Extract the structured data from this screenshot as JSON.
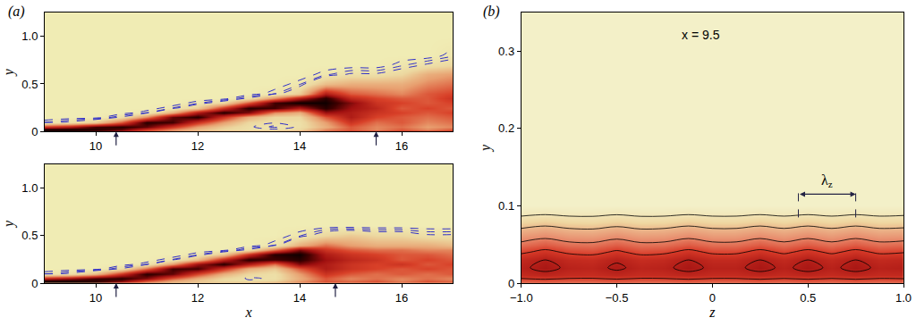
{
  "chart_data": [
    {
      "type": "heatmap",
      "panel_label": "(a)",
      "ylabel": "y",
      "x": [
        9,
        9.5,
        10,
        10.5,
        11,
        11.5,
        12,
        12.5,
        13,
        13.5,
        14,
        14.5,
        15,
        15.5,
        16,
        16.5,
        17
      ],
      "y": [
        0,
        0.02,
        0.05,
        0.1,
        0.15,
        0.2,
        0.25,
        0.3,
        0.35,
        0.4,
        0.5,
        0.6,
        0.7,
        0.8,
        1.0,
        1.25
      ],
      "z": [
        [
          0.9,
          0.9,
          0.85,
          0.7,
          0.5,
          0.4,
          0.35,
          0.35,
          0.35,
          0.35,
          0.4,
          0.5,
          0.6,
          0.6,
          0.6,
          0.6,
          0.6
        ],
        [
          1,
          1,
          0.95,
          0.85,
          0.6,
          0.4,
          0.25,
          0.15,
          0.1,
          0.1,
          0.15,
          0.4,
          0.5,
          0.4,
          0.5,
          0.4,
          0.5
        ],
        [
          0.6,
          0.7,
          0.9,
          0.95,
          0.85,
          0.6,
          0.35,
          0.2,
          0.1,
          0.05,
          0.1,
          0.3,
          0.5,
          0.4,
          0.45,
          0.35,
          0.4
        ],
        [
          0.05,
          0.1,
          0.2,
          0.5,
          0.95,
          0.9,
          0.6,
          0.35,
          0.15,
          0.1,
          0.1,
          0.35,
          0.6,
          0.45,
          0.5,
          0.4,
          0.45
        ],
        [
          0,
          0,
          0,
          0.1,
          0.4,
          0.85,
          0.95,
          0.6,
          0.3,
          0.15,
          0.15,
          0.5,
          0.7,
          0.55,
          0.5,
          0.45,
          0.5
        ],
        [
          0,
          0,
          0,
          0,
          0.05,
          0.3,
          0.7,
          0.95,
          0.8,
          0.4,
          0.3,
          0.75,
          0.7,
          0.6,
          0.55,
          0.5,
          0.55
        ],
        [
          0,
          0,
          0,
          0,
          0,
          0.05,
          0.2,
          0.6,
          0.95,
          0.9,
          0.7,
          0.95,
          0.75,
          0.65,
          0.5,
          0.55,
          0.5
        ],
        [
          0,
          0,
          0,
          0,
          0,
          0,
          0.05,
          0.15,
          0.5,
          0.9,
          1,
          1,
          0.8,
          0.6,
          0.55,
          0.5,
          0.55
        ],
        [
          0,
          0,
          0,
          0,
          0,
          0,
          0,
          0,
          0.1,
          0.4,
          0.7,
          0.95,
          0.65,
          0.55,
          0.5,
          0.5,
          0.6
        ],
        [
          0,
          0,
          0,
          0,
          0,
          0,
          0,
          0,
          0,
          0.05,
          0.2,
          0.7,
          0.5,
          0.45,
          0.4,
          0.5,
          0.55
        ],
        [
          0,
          0,
          0,
          0,
          0,
          0,
          0,
          0,
          0,
          0,
          0.05,
          0.25,
          0.3,
          0.3,
          0.3,
          0.4,
          0.45
        ],
        [
          0,
          0,
          0,
          0,
          0,
          0,
          0,
          0,
          0,
          0,
          0,
          0.05,
          0.1,
          0.1,
          0.15,
          0.3,
          0.35
        ],
        [
          0,
          0,
          0,
          0,
          0,
          0,
          0,
          0,
          0,
          0,
          0,
          0,
          0,
          0,
          0.05,
          0.1,
          0.15
        ],
        [
          0,
          0,
          0,
          0,
          0,
          0,
          0,
          0,
          0,
          0,
          0,
          0,
          0,
          0,
          0,
          0,
          0.05
        ],
        [
          0,
          0,
          0,
          0,
          0,
          0,
          0,
          0,
          0,
          0,
          0,
          0,
          0,
          0,
          0,
          0,
          0
        ],
        [
          0,
          0,
          0,
          0,
          0,
          0,
          0,
          0,
          0,
          0,
          0,
          0,
          0,
          0,
          0,
          0,
          0
        ]
      ],
      "zlim": [
        0,
        1
      ],
      "dashed_levels": {
        "start": 0.03,
        "end": 0.09,
        "size": 0.03
      },
      "xlim": [
        9,
        17
      ],
      "xticks": [
        10,
        12,
        14,
        16
      ],
      "ylim": [
        0,
        1.25
      ],
      "yticks": [
        0,
        0.5,
        {
          "value": 1,
          "label": "1.0"
        }
      ],
      "arrows": [
        10.4,
        15.5
      ]
    },
    {
      "type": "heatmap",
      "xlabel": "x",
      "ylabel": "y",
      "x": [
        9,
        9.5,
        10,
        10.5,
        11,
        11.5,
        12,
        12.5,
        13,
        13.5,
        14,
        14.5,
        15,
        15.5,
        16,
        16.5,
        17
      ],
      "y": [
        0,
        0.02,
        0.05,
        0.1,
        0.15,
        0.2,
        0.25,
        0.3,
        0.35,
        0.4,
        0.5,
        0.6,
        0.7,
        0.8,
        1.0,
        1.25
      ],
      "z": [
        [
          0.9,
          0.9,
          0.85,
          0.65,
          0.45,
          0.4,
          0.35,
          0.35,
          0.4,
          0.45,
          0.5,
          0.6,
          0.6,
          0.6,
          0.6,
          0.6,
          0.6
        ],
        [
          1,
          1,
          0.95,
          0.8,
          0.5,
          0.3,
          0.2,
          0.12,
          0.1,
          0.15,
          0.35,
          0.5,
          0.45,
          0.5,
          0.4,
          0.5,
          0.45
        ],
        [
          0.65,
          0.75,
          0.9,
          0.95,
          0.8,
          0.5,
          0.3,
          0.15,
          0.08,
          0.1,
          0.3,
          0.5,
          0.4,
          0.45,
          0.4,
          0.45,
          0.4
        ],
        [
          0.05,
          0.1,
          0.25,
          0.6,
          0.95,
          0.85,
          0.55,
          0.3,
          0.15,
          0.1,
          0.35,
          0.6,
          0.5,
          0.45,
          0.5,
          0.45,
          0.5
        ],
        [
          0,
          0,
          0,
          0.1,
          0.45,
          0.9,
          0.9,
          0.6,
          0.3,
          0.2,
          0.5,
          0.7,
          0.6,
          0.55,
          0.5,
          0.55,
          0.5
        ],
        [
          0,
          0,
          0,
          0,
          0.05,
          0.35,
          0.75,
          0.95,
          0.7,
          0.45,
          0.8,
          0.7,
          0.6,
          0.55,
          0.6,
          0.5,
          0.55
        ],
        [
          0,
          0,
          0,
          0,
          0,
          0.05,
          0.25,
          0.65,
          0.95,
          0.9,
          0.95,
          0.75,
          0.65,
          0.6,
          0.5,
          0.55,
          0.5
        ],
        [
          0,
          0,
          0,
          0,
          0,
          0,
          0.05,
          0.2,
          0.6,
          0.95,
          1,
          0.7,
          0.6,
          0.55,
          0.5,
          0.5,
          0.45
        ],
        [
          0,
          0,
          0,
          0,
          0,
          0,
          0,
          0,
          0.1,
          0.45,
          0.8,
          0.6,
          0.5,
          0.45,
          0.45,
          0.4,
          0.4
        ],
        [
          0,
          0,
          0,
          0,
          0,
          0,
          0,
          0,
          0,
          0.05,
          0.3,
          0.45,
          0.35,
          0.3,
          0.3,
          0.3,
          0.25
        ],
        [
          0,
          0,
          0,
          0,
          0,
          0,
          0,
          0,
          0,
          0,
          0.05,
          0.15,
          0.2,
          0.15,
          0.15,
          0.1,
          0.1
        ],
        [
          0,
          0,
          0,
          0,
          0,
          0,
          0,
          0,
          0,
          0,
          0,
          0,
          0,
          0,
          0,
          0,
          0
        ],
        [
          0,
          0,
          0,
          0,
          0,
          0,
          0,
          0,
          0,
          0,
          0,
          0,
          0,
          0,
          0,
          0,
          0
        ],
        [
          0,
          0,
          0,
          0,
          0,
          0,
          0,
          0,
          0,
          0,
          0,
          0,
          0,
          0,
          0,
          0,
          0
        ],
        [
          0,
          0,
          0,
          0,
          0,
          0,
          0,
          0,
          0,
          0,
          0,
          0,
          0,
          0,
          0,
          0,
          0
        ],
        [
          0,
          0,
          0,
          0,
          0,
          0,
          0,
          0,
          0,
          0,
          0,
          0,
          0,
          0,
          0,
          0,
          0
        ]
      ],
      "zlim": [
        0,
        1
      ],
      "dashed_levels": {
        "start": 0.03,
        "end": 0.09,
        "size": 0.03
      },
      "xlim": [
        9,
        17
      ],
      "xticks": [
        10,
        12,
        14,
        16
      ],
      "ylim": [
        0,
        1.25
      ],
      "yticks": [
        0,
        0.5,
        {
          "value": 1,
          "label": "1.0"
        }
      ],
      "arrows": [
        10.4,
        14.7
      ]
    },
    {
      "type": "contour",
      "panel_label": "(b)",
      "annotation": "x = 9.5",
      "xlabel": "z",
      "ylabel": "y",
      "x": [
        -1,
        -0.875,
        -0.75,
        -0.625,
        -0.5,
        -0.375,
        -0.25,
        -0.125,
        0,
        0.125,
        0.25,
        0.375,
        0.5,
        0.625,
        0.75,
        0.875,
        1
      ],
      "y": [
        0,
        0.01,
        0.02,
        0.03,
        0.04,
        0.05,
        0.06,
        0.07,
        0.08,
        0.09,
        0.1,
        0.15,
        0.35
      ],
      "z": [
        [
          0.53,
          0.55,
          0.53,
          0.53,
          0.55,
          0.53,
          0.53,
          0.55,
          0.53,
          0.53,
          0.55,
          0.53,
          0.55,
          0.53,
          0.55,
          0.53,
          0.54
        ],
        [
          0.81,
          0.85,
          0.81,
          0.8,
          0.84,
          0.8,
          0.81,
          0.85,
          0.81,
          0.81,
          0.85,
          0.81,
          0.85,
          0.81,
          0.85,
          0.81,
          0.82
        ],
        [
          0.87,
          0.95,
          0.87,
          0.85,
          0.93,
          0.85,
          0.87,
          0.95,
          0.87,
          0.87,
          0.95,
          0.87,
          0.95,
          0.87,
          0.95,
          0.87,
          0.89
        ],
        [
          0.82,
          0.9,
          0.82,
          0.8,
          0.88,
          0.8,
          0.82,
          0.9,
          0.82,
          0.82,
          0.9,
          0.82,
          0.9,
          0.82,
          0.9,
          0.82,
          0.84
        ],
        [
          0.67,
          0.75,
          0.67,
          0.65,
          0.73,
          0.65,
          0.67,
          0.75,
          0.67,
          0.67,
          0.75,
          0.67,
          0.75,
          0.67,
          0.75,
          0.67,
          0.69
        ],
        [
          0.54,
          0.6,
          0.54,
          0.53,
          0.59,
          0.53,
          0.54,
          0.6,
          0.54,
          0.54,
          0.6,
          0.54,
          0.6,
          0.54,
          0.6,
          0.54,
          0.56
        ],
        [
          0.42,
          0.47,
          0.42,
          0.41,
          0.46,
          0.41,
          0.42,
          0.47,
          0.42,
          0.42,
          0.47,
          0.42,
          0.47,
          0.42,
          0.47,
          0.42,
          0.43
        ],
        [
          0.31,
          0.35,
          0.31,
          0.3,
          0.34,
          0.3,
          0.31,
          0.35,
          0.31,
          0.31,
          0.35,
          0.31,
          0.35,
          0.31,
          0.35,
          0.31,
          0.32
        ],
        [
          0.18,
          0.22,
          0.18,
          0.17,
          0.21,
          0.17,
          0.18,
          0.22,
          0.18,
          0.18,
          0.22,
          0.18,
          0.22,
          0.18,
          0.22,
          0.18,
          0.19
        ],
        [
          0.06,
          0.08,
          0.06,
          0.06,
          0.08,
          0.06,
          0.06,
          0.08,
          0.06,
          0.06,
          0.08,
          0.06,
          0.08,
          0.06,
          0.08,
          0.06,
          0.07
        ],
        [
          0,
          0,
          0,
          0,
          0,
          0,
          0,
          0,
          0,
          0,
          0,
          0,
          0,
          0,
          0,
          0,
          0
        ],
        [
          0,
          0,
          0,
          0,
          0,
          0,
          0,
          0,
          0,
          0,
          0,
          0,
          0,
          0,
          0,
          0,
          0
        ],
        [
          0,
          0,
          0,
          0,
          0,
          0,
          0,
          0,
          0,
          0,
          0,
          0,
          0,
          0,
          0,
          0,
          0
        ]
      ],
      "zlim": [
        0,
        1
      ],
      "levels": {
        "start": 0.1,
        "end": 0.9,
        "size": 0.2
      },
      "xlim": [
        -1,
        1
      ],
      "xticks": [
        {
          "value": -1,
          "label": "−1.0"
        },
        {
          "value": -0.5,
          "label": "−0.5"
        },
        0,
        0.5,
        {
          "value": 1,
          "label": "1.0"
        }
      ],
      "ylim": [
        0,
        0.35
      ],
      "yticks": [
        0,
        0.1,
        0.2,
        0.3
      ],
      "bracket": {
        "from": 0.45,
        "to": 0.75,
        "y": 0.115,
        "symbol": "λ",
        "subscript": "z"
      }
    }
  ]
}
